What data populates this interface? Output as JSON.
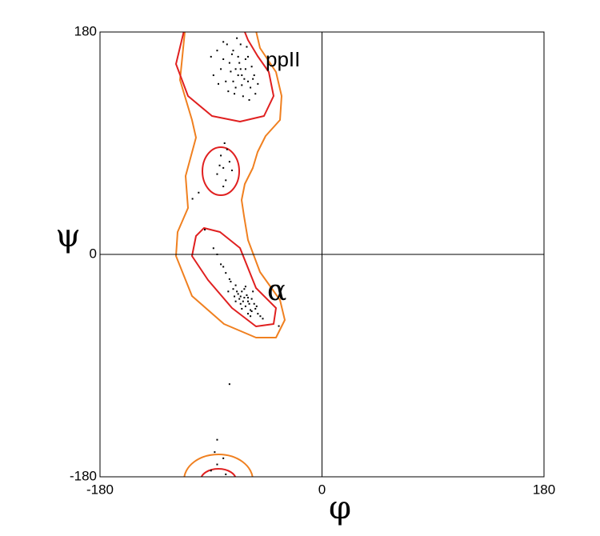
{
  "chart_data": {
    "type": "scatter",
    "x_label": "φ",
    "y_label": "ψ",
    "annotations": [
      "ppII",
      "α"
    ],
    "xlim": [
      -180,
      180
    ],
    "ylim": [
      -180,
      180
    ],
    "xticks": [
      -180,
      0,
      180
    ],
    "yticks": [
      -180,
      0,
      180
    ],
    "grid": true,
    "color": "#000000",
    "x": [
      -70,
      -65,
      -75,
      -60,
      -68,
      -72,
      -62,
      -58,
      -80,
      -66,
      -55,
      -78,
      -70,
      -64,
      -85,
      -60,
      -74,
      -67,
      -52,
      -82,
      -69,
      -77,
      -63,
      -57,
      -71,
      -88,
      -59,
      -73,
      -65,
      -61,
      -90,
      -54,
      -76,
      -68,
      -62,
      -80,
      -56,
      -72,
      -66,
      -84,
      -60,
      -65,
      -55,
      -62,
      -70,
      -58,
      -64,
      -68,
      -52,
      -75,
      -80,
      -85,
      -57,
      -63,
      -50,
      -66,
      -72,
      -60,
      -54,
      -78,
      -61,
      -67,
      -59,
      -56,
      -70,
      -48,
      -74,
      -62,
      -88,
      -53,
      -65,
      -69,
      -58,
      -63,
      -76,
      -82,
      -60,
      -66,
      -71,
      -57,
      -80,
      -78,
      -82,
      -75,
      -85,
      -77,
      -80,
      -73,
      -83,
      -79,
      -85,
      -80,
      -90,
      -78,
      -87,
      -95,
      -100,
      -75,
      -85,
      -105,
      -35
    ],
    "y": [
      150,
      145,
      155,
      140,
      160,
      165,
      150,
      135,
      158,
      170,
      145,
      140,
      135,
      128,
      165,
      160,
      148,
      155,
      138,
      150,
      175,
      170,
      142,
      152,
      130,
      145,
      125,
      162,
      137,
      168,
      160,
      130,
      132,
      145,
      158,
      172,
      142,
      140,
      150,
      138,
      -35,
      -30,
      -40,
      -42,
      -25,
      -45,
      -38,
      -32,
      -48,
      -20,
      -10,
      0,
      -36,
      -28,
      -50,
      -40,
      -28,
      -48,
      -44,
      -15,
      -33,
      -36,
      -40,
      -30,
      -38,
      -52,
      -22,
      -26,
      5,
      -42,
      -44,
      -30,
      -50,
      -35,
      -30,
      -8,
      -38,
      -34,
      -34,
      -46,
      70,
      60,
      80,
      75,
      65,
      85,
      55,
      68,
      72,
      90,
      -170,
      -165,
      -175,
      -178,
      -160,
      20,
      50,
      -105,
      -150,
      45,
      -58
    ]
  }
}
